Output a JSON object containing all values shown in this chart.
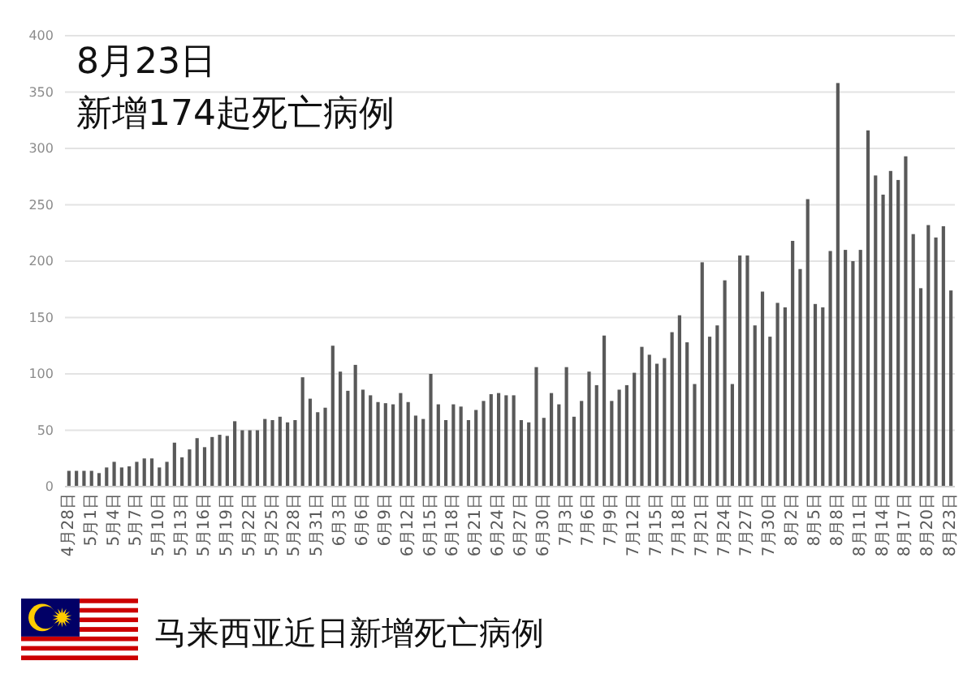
{
  "chart_data": {
    "type": "bar",
    "title": "8月23日",
    "subtitle": "新增174起死亡病例",
    "categories": [
      "4月28日",
      null,
      null,
      "5月1日",
      null,
      null,
      "5月4日",
      null,
      null,
      "5月7日",
      null,
      null,
      "5月10日",
      null,
      null,
      "5月13日",
      null,
      null,
      "5月16日",
      null,
      null,
      "5月19日",
      null,
      null,
      "5月22日",
      null,
      null,
      "5月25日",
      null,
      null,
      "5月28日",
      null,
      null,
      "5月31日",
      null,
      null,
      "6月3日",
      null,
      null,
      "6月6日",
      null,
      null,
      "6月9日",
      null,
      null,
      "6月12日",
      null,
      null,
      "6月15日",
      null,
      null,
      "6月18日",
      null,
      null,
      "6月21日",
      null,
      null,
      "6月24日",
      null,
      null,
      "6月27日",
      null,
      null,
      "6月30日",
      null,
      null,
      "7月3日",
      null,
      null,
      "7月6日",
      null,
      null,
      "7月9日",
      null,
      null,
      "7月12日",
      null,
      null,
      "7月15日",
      null,
      null,
      "7月18日",
      null,
      null,
      "7月21日",
      null,
      null,
      "7月24日",
      null,
      null,
      "7月27日",
      null,
      null,
      "7月30日",
      null,
      null,
      "8月2日",
      null,
      null,
      "8月5日",
      null,
      null,
      "8月8日",
      null,
      null,
      "8月11日",
      null,
      null,
      "8月14日",
      null,
      null,
      "8月17日",
      null,
      null,
      "8月20日",
      null,
      null,
      "8月23日"
    ],
    "values": [
      14,
      14,
      14,
      14,
      12,
      17,
      22,
      17,
      18,
      22,
      25,
      25,
      17,
      22,
      39,
      26,
      33,
      43,
      35,
      44,
      46,
      45,
      58,
      50,
      50,
      50,
      60,
      59,
      62,
      57,
      59,
      97,
      78,
      66,
      70,
      125,
      102,
      85,
      108,
      86,
      81,
      75,
      74,
      73,
      83,
      75,
      63,
      60,
      100,
      73,
      59,
      73,
      71,
      59,
      68,
      76,
      82,
      83,
      81,
      81,
      59,
      57,
      106,
      61,
      83,
      73,
      106,
      62,
      76,
      102,
      90,
      134,
      76,
      86,
      90,
      101,
      124,
      117,
      109,
      114,
      137,
      152,
      128,
      91,
      199,
      133,
      143,
      183,
      91,
      205,
      205,
      143,
      173,
      133,
      163,
      159,
      218,
      193,
      255,
      162,
      159,
      209,
      358,
      210,
      200,
      210,
      316,
      276,
      259,
      280,
      272,
      293,
      224,
      176,
      232,
      221,
      231,
      174
    ],
    "color": "#595959",
    "ylim": [
      0,
      400
    ],
    "yticks": [
      0,
      50,
      100,
      150,
      200,
      250,
      300,
      350,
      400
    ],
    "grid": "y",
    "annotations": [
      "马来西亚近日新增死亡病例"
    ]
  }
}
